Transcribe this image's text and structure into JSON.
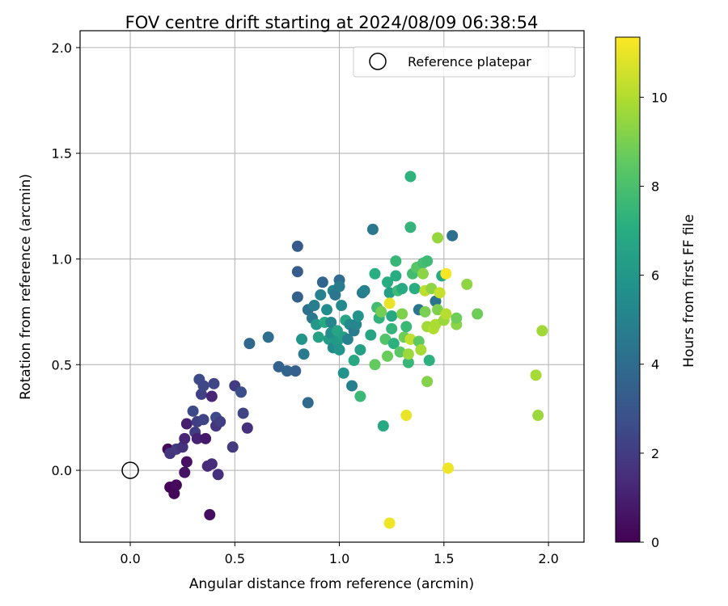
{
  "chart_data": {
    "type": "scatter",
    "title": "FOV centre drift starting at 2024/08/09 06:38:54",
    "xlabel": "Angular distance from reference (arcmin)",
    "ylabel": "Rotation from reference (arcmin)",
    "xlim": [
      -0.24,
      2.17
    ],
    "ylim": [
      -0.34,
      2.08
    ],
    "xticks": [
      "0.0",
      "0.5",
      "1.0",
      "1.5",
      "2.0"
    ],
    "xtick_values": [
      0.0,
      0.5,
      1.0,
      1.5,
      2.0
    ],
    "yticks": [
      "0.0",
      "0.5",
      "1.0",
      "1.5",
      "2.0"
    ],
    "ytick_values": [
      0.0,
      0.5,
      1.0,
      1.5,
      2.0
    ],
    "grid": true,
    "legend": {
      "label": "Reference platepar",
      "position": "top-right"
    },
    "reference_point": {
      "x": 0.0,
      "y": 0.0
    },
    "colorbar": {
      "label": "Hours from first FF file",
      "colormap": "viridis",
      "range": [
        0,
        11.35
      ],
      "ticks": [
        "0",
        "2",
        "4",
        "6",
        "8",
        "10"
      ],
      "tick_values": [
        0,
        2,
        4,
        6,
        8,
        10
      ]
    },
    "points": [
      {
        "x": 0.18,
        "y": 0.1,
        "c": 0.2
      },
      {
        "x": 0.19,
        "y": -0.08,
        "c": 0.1
      },
      {
        "x": 0.21,
        "y": -0.11,
        "c": 0.2
      },
      {
        "x": 0.22,
        "y": -0.07,
        "c": 0.3
      },
      {
        "x": 0.26,
        "y": -0.01,
        "c": 0.6
      },
      {
        "x": 0.27,
        "y": 0.04,
        "c": 0.5
      },
      {
        "x": 0.38,
        "y": -0.21,
        "c": 0.4
      },
      {
        "x": 0.19,
        "y": 0.08,
        "c": 1.8
      },
      {
        "x": 0.22,
        "y": 0.1,
        "c": 1.9
      },
      {
        "x": 0.25,
        "y": 0.11,
        "c": 1.6
      },
      {
        "x": 0.26,
        "y": 0.15,
        "c": 1.2
      },
      {
        "x": 0.27,
        "y": 0.22,
        "c": 1.0
      },
      {
        "x": 0.3,
        "y": 0.28,
        "c": 2.5
      },
      {
        "x": 0.31,
        "y": 0.18,
        "c": 2.0
      },
      {
        "x": 0.32,
        "y": 0.23,
        "c": 2.1
      },
      {
        "x": 0.32,
        "y": 0.15,
        "c": 1.1
      },
      {
        "x": 0.33,
        "y": 0.43,
        "c": 2.6
      },
      {
        "x": 0.34,
        "y": 0.36,
        "c": 2.2
      },
      {
        "x": 0.35,
        "y": 0.24,
        "c": 2.3
      },
      {
        "x": 0.35,
        "y": 0.4,
        "c": 2.4
      },
      {
        "x": 0.36,
        "y": 0.15,
        "c": 0.8
      },
      {
        "x": 0.37,
        "y": 0.02,
        "c": 1.3
      },
      {
        "x": 0.39,
        "y": 0.03,
        "c": 1.4
      },
      {
        "x": 0.39,
        "y": 0.35,
        "c": 1.2
      },
      {
        "x": 0.4,
        "y": 0.41,
        "c": 2.4
      },
      {
        "x": 0.41,
        "y": 0.25,
        "c": 2.6
      },
      {
        "x": 0.41,
        "y": 0.21,
        "c": 1.7
      },
      {
        "x": 0.42,
        "y": -0.02,
        "c": 1.5
      },
      {
        "x": 0.43,
        "y": 0.23,
        "c": 2.1
      },
      {
        "x": 0.49,
        "y": 0.11,
        "c": 1.9
      },
      {
        "x": 0.5,
        "y": 0.4,
        "c": 2.0
      },
      {
        "x": 0.53,
        "y": 0.37,
        "c": 2.7
      },
      {
        "x": 0.54,
        "y": 0.27,
        "c": 2.3
      },
      {
        "x": 0.56,
        "y": 0.2,
        "c": 1.5
      },
      {
        "x": 0.57,
        "y": 0.6,
        "c": 3.8
      },
      {
        "x": 0.66,
        "y": 0.63,
        "c": 4.1
      },
      {
        "x": 0.71,
        "y": 0.49,
        "c": 3.6
      },
      {
        "x": 0.75,
        "y": 0.47,
        "c": 3.7
      },
      {
        "x": 0.79,
        "y": 0.47,
        "c": 3.4
      },
      {
        "x": 0.8,
        "y": 1.06,
        "c": 3.2
      },
      {
        "x": 0.8,
        "y": 0.94,
        "c": 3.3
      },
      {
        "x": 0.8,
        "y": 0.82,
        "c": 3.5
      },
      {
        "x": 0.82,
        "y": 0.62,
        "c": 5.8
      },
      {
        "x": 0.83,
        "y": 0.55,
        "c": 4.6
      },
      {
        "x": 0.85,
        "y": 0.32,
        "c": 3.9
      },
      {
        "x": 0.85,
        "y": 0.76,
        "c": 4.2
      },
      {
        "x": 0.87,
        "y": 0.72,
        "c": 4.5
      },
      {
        "x": 0.88,
        "y": 0.78,
        "c": 4.8
      },
      {
        "x": 0.89,
        "y": 0.69,
        "c": 6.0
      },
      {
        "x": 0.9,
        "y": 0.63,
        "c": 6.5
      },
      {
        "x": 0.91,
        "y": 0.83,
        "c": 5.0
      },
      {
        "x": 0.92,
        "y": 0.89,
        "c": 3.7
      },
      {
        "x": 0.93,
        "y": 0.7,
        "c": 6.9
      },
      {
        "x": 0.94,
        "y": 0.76,
        "c": 5.5
      },
      {
        "x": 0.95,
        "y": 0.62,
        "c": 6.2
      },
      {
        "x": 0.96,
        "y": 0.65,
        "c": 5.6
      },
      {
        "x": 0.96,
        "y": 0.7,
        "c": 5.2
      },
      {
        "x": 0.97,
        "y": 0.58,
        "c": 5.4
      },
      {
        "x": 0.97,
        "y": 0.85,
        "c": 5.1
      },
      {
        "x": 0.98,
        "y": 0.83,
        "c": 4.4
      },
      {
        "x": 0.99,
        "y": 0.61,
        "c": 6.1
      },
      {
        "x": 0.99,
        "y": 0.66,
        "c": 6.6
      },
      {
        "x": 1.0,
        "y": 0.9,
        "c": 4.0
      },
      {
        "x": 1.0,
        "y": 0.87,
        "c": 4.7
      },
      {
        "x": 1.0,
        "y": 0.57,
        "c": 5.9
      },
      {
        "x": 1.01,
        "y": 0.78,
        "c": 5.3
      },
      {
        "x": 1.02,
        "y": 0.63,
        "c": 6.3
      },
      {
        "x": 1.02,
        "y": 0.46,
        "c": 5.7
      },
      {
        "x": 1.03,
        "y": 0.71,
        "c": 6.7
      },
      {
        "x": 1.04,
        "y": 0.62,
        "c": 5.0
      },
      {
        "x": 1.05,
        "y": 0.69,
        "c": 5.4
      },
      {
        "x": 1.06,
        "y": 0.4,
        "c": 4.9
      },
      {
        "x": 1.07,
        "y": 0.66,
        "c": 4.7
      },
      {
        "x": 1.07,
        "y": 0.52,
        "c": 6.8
      },
      {
        "x": 1.08,
        "y": 0.69,
        "c": 5.2
      },
      {
        "x": 1.09,
        "y": 0.73,
        "c": 5.8
      },
      {
        "x": 1.1,
        "y": 0.57,
        "c": 6.4
      },
      {
        "x": 1.1,
        "y": 0.35,
        "c": 7.6
      },
      {
        "x": 1.11,
        "y": 0.84,
        "c": 4.6
      },
      {
        "x": 1.12,
        "y": 0.85,
        "c": 5.0
      },
      {
        "x": 1.15,
        "y": 0.64,
        "c": 6.6
      },
      {
        "x": 1.16,
        "y": 1.14,
        "c": 4.5
      },
      {
        "x": 1.17,
        "y": 0.93,
        "c": 7.1
      },
      {
        "x": 1.17,
        "y": 0.5,
        "c": 8.6
      },
      {
        "x": 1.18,
        "y": 0.77,
        "c": 7.8
      },
      {
        "x": 1.19,
        "y": 0.72,
        "c": 7.3
      },
      {
        "x": 1.2,
        "y": 0.75,
        "c": 8.9
      },
      {
        "x": 1.21,
        "y": 0.21,
        "c": 6.9
      },
      {
        "x": 1.22,
        "y": 0.62,
        "c": 8.2
      },
      {
        "x": 1.23,
        "y": 0.54,
        "c": 8.7
      },
      {
        "x": 1.23,
        "y": 0.89,
        "c": 7.0
      },
      {
        "x": 1.24,
        "y": 0.84,
        "c": 6.4
      },
      {
        "x": 1.24,
        "y": 0.79,
        "c": 11.0
      },
      {
        "x": 1.25,
        "y": 0.67,
        "c": 7.4
      },
      {
        "x": 1.25,
        "y": 0.73,
        "c": 6.8
      },
      {
        "x": 1.26,
        "y": 0.6,
        "c": 7.2
      },
      {
        "x": 1.27,
        "y": 0.99,
        "c": 7.5
      },
      {
        "x": 1.27,
        "y": 0.92,
        "c": 7.0
      },
      {
        "x": 1.28,
        "y": 0.85,
        "c": 7.7
      },
      {
        "x": 1.29,
        "y": 0.56,
        "c": 8.4
      },
      {
        "x": 1.3,
        "y": 0.74,
        "c": 9.1
      },
      {
        "x": 1.3,
        "y": 0.86,
        "c": 6.9
      },
      {
        "x": 1.31,
        "y": 0.63,
        "c": 8.8
      },
      {
        "x": 1.32,
        "y": 0.68,
        "c": 7.6
      },
      {
        "x": 1.32,
        "y": 0.26,
        "c": 11.0
      },
      {
        "x": 1.33,
        "y": 0.51,
        "c": 7.5
      },
      {
        "x": 1.33,
        "y": 0.55,
        "c": 9.6
      },
      {
        "x": 1.34,
        "y": 1.39,
        "c": 7.3
      },
      {
        "x": 1.34,
        "y": 1.15,
        "c": 7.4
      },
      {
        "x": 1.34,
        "y": 0.62,
        "c": 10.3
      },
      {
        "x": 1.35,
        "y": 0.93,
        "c": 7.8
      },
      {
        "x": 1.36,
        "y": 0.86,
        "c": 7.1
      },
      {
        "x": 1.37,
        "y": 0.96,
        "c": 8.3
      },
      {
        "x": 1.38,
        "y": 0.76,
        "c": 4.4
      },
      {
        "x": 1.38,
        "y": 0.61,
        "c": 8.5
      },
      {
        "x": 1.39,
        "y": 0.57,
        "c": 9.8
      },
      {
        "x": 1.4,
        "y": 0.98,
        "c": 7.9
      },
      {
        "x": 1.4,
        "y": 0.93,
        "c": 9.3
      },
      {
        "x": 1.41,
        "y": 0.75,
        "c": 9.0
      },
      {
        "x": 1.41,
        "y": 0.85,
        "c": 10.2
      },
      {
        "x": 1.42,
        "y": 0.68,
        "c": 9.7
      },
      {
        "x": 1.42,
        "y": 0.99,
        "c": 7.7
      },
      {
        "x": 1.42,
        "y": 0.42,
        "c": 9.2
      },
      {
        "x": 1.43,
        "y": 0.52,
        "c": 7.2
      },
      {
        "x": 1.44,
        "y": 0.86,
        "c": 9.4
      },
      {
        "x": 1.45,
        "y": 0.67,
        "c": 10.0
      },
      {
        "x": 1.46,
        "y": 0.8,
        "c": 4.3
      },
      {
        "x": 1.46,
        "y": 0.69,
        "c": 9.9
      },
      {
        "x": 1.47,
        "y": 1.1,
        "c": 9.5
      },
      {
        "x": 1.47,
        "y": 0.76,
        "c": 9.1
      },
      {
        "x": 1.48,
        "y": 0.84,
        "c": 10.4
      },
      {
        "x": 1.49,
        "y": 0.92,
        "c": 6.9
      },
      {
        "x": 1.5,
        "y": 0.71,
        "c": 9.6
      },
      {
        "x": 1.51,
        "y": 0.93,
        "c": 11.2
      },
      {
        "x": 1.51,
        "y": 0.74,
        "c": 10.1
      },
      {
        "x": 1.52,
        "y": 0.01,
        "c": 11.1
      },
      {
        "x": 1.54,
        "y": 1.11,
        "c": 4.2
      },
      {
        "x": 1.56,
        "y": 0.69,
        "c": 9.3
      },
      {
        "x": 1.56,
        "y": 0.72,
        "c": 8.8
      },
      {
        "x": 1.61,
        "y": 0.88,
        "c": 9.4
      },
      {
        "x": 1.66,
        "y": 0.74,
        "c": 8.8
      },
      {
        "x": 1.24,
        "y": -0.25,
        "c": 11.1
      },
      {
        "x": 1.94,
        "y": 0.45,
        "c": 9.8
      },
      {
        "x": 1.95,
        "y": 0.26,
        "c": 9.6
      },
      {
        "x": 1.97,
        "y": 0.66,
        "c": 9.7
      }
    ]
  }
}
